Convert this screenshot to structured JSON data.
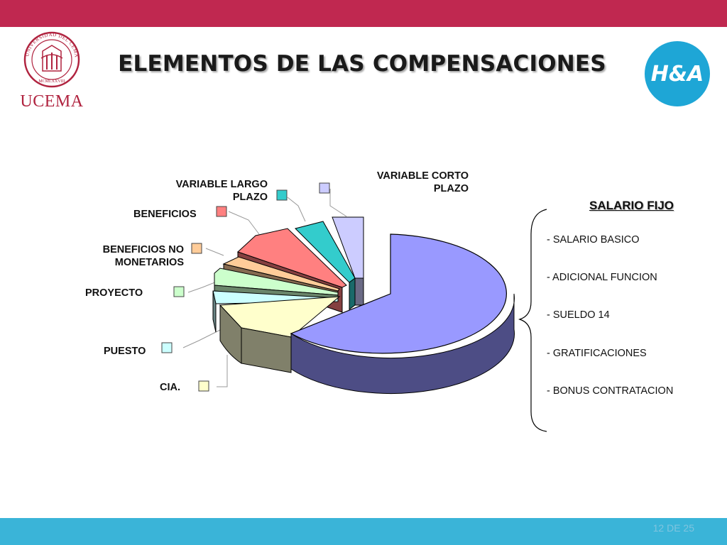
{
  "header": {
    "title": "ELEMENTOS DE LAS COMPENSACIONES",
    "logo_left_text": "UCEMA",
    "logo_left_seal_text": "UNIVERSIDAD DEL CEMA · MCMLXXVIII",
    "logo_right_text": "H&A",
    "bar_color": "#c02850"
  },
  "footer": {
    "page_number": "12 DE 25",
    "bar_color": "#3ab4d8"
  },
  "chart_data": {
    "type": "pie",
    "title": "",
    "slices": [
      {
        "label": "SALARIO FIJO",
        "value": 67,
        "color": "#9999ff",
        "side": "#4d4d85"
      },
      {
        "label": "CIA.",
        "value": 8,
        "color": "#ffffcc",
        "side": "#80806a"
      },
      {
        "label": "PUESTO",
        "value": 3,
        "color": "#ccffff",
        "side": "#6a8585"
      },
      {
        "label": "PROYECTO",
        "value": 4,
        "color": "#ccffcc",
        "side": "#6a856a"
      },
      {
        "label": "BENEFICIOS NO MONETARIOS",
        "value": 3,
        "color": "#ffcc99",
        "side": "#856a50"
      },
      {
        "label": "BENEFICIOS",
        "value": 8,
        "color": "#ff8080",
        "side": "#854040"
      },
      {
        "label": "VARIABLE LARGO PLAZO",
        "value": 4,
        "color": "#33cccc",
        "side": "#1a6a6a"
      },
      {
        "label": "VARIABLE CORTO PLAZO",
        "value": 3,
        "color": "#ccccff",
        "side": "#6a6a85"
      }
    ],
    "legend_labels": {
      "cia": "CIA.",
      "puesto": "PUESTO",
      "proyecto": "PROYECTO",
      "beneficios_no_monetarios_1": "BENEFICIOS NO",
      "beneficios_no_monetarios_2": "MONETARIOS",
      "beneficios": "BENEFICIOS",
      "variable_largo_1": "VARIABLE LARGO",
      "variable_largo_2": "PLAZO",
      "variable_corto_1": "VARIABLE CORTO",
      "variable_corto_2": "PLAZO"
    }
  },
  "salario_fijo": {
    "title": "SALARIO FIJO",
    "items": [
      "- SALARIO BASICO",
      "- ADICIONAL FUNCION",
      "- SUELDO 14",
      "- GRATIFICACIONES",
      "- BONUS CONTRATACION"
    ]
  }
}
